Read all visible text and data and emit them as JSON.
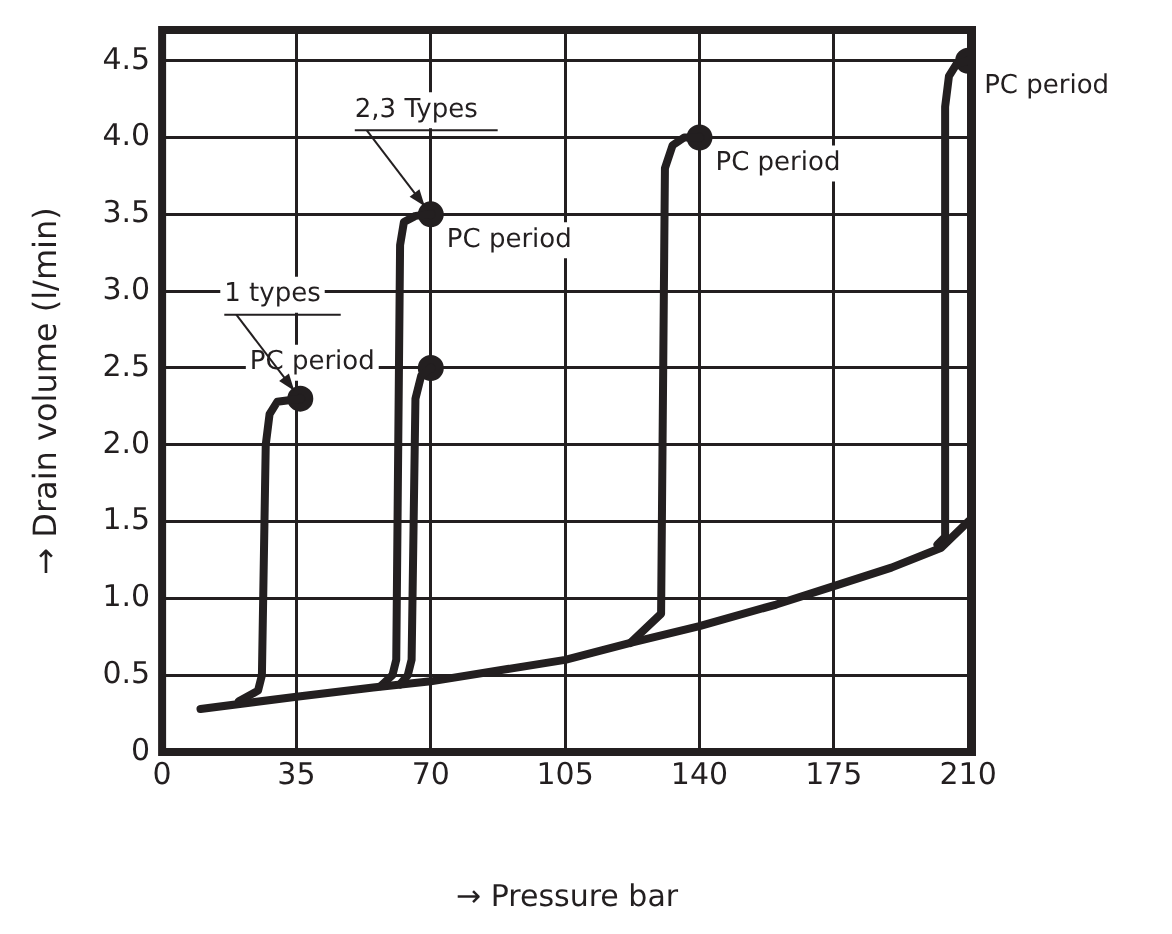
{
  "chart_data": {
    "type": "line",
    "xlabel": "→ Pressure bar",
    "ylabel": "→ Drain volume (l/min)",
    "xlim": [
      0,
      211
    ],
    "ylim": [
      0,
      4.7
    ],
    "xticks": [
      0,
      35,
      70,
      105,
      140,
      175,
      210
    ],
    "yticks": [
      0,
      {
        "value": 0.5,
        "label": "0.5"
      },
      {
        "value": 1,
        "label": "1.0"
      },
      {
        "value": 1.5,
        "label": "1.5"
      },
      {
        "value": 2,
        "label": "2.0"
      },
      {
        "value": 2.5,
        "label": "2.5"
      },
      {
        "value": 3,
        "label": "3.0"
      },
      {
        "value": 3.5,
        "label": "3.5"
      },
      {
        "value": 4,
        "label": "4.0"
      },
      {
        "value": 4.5,
        "label": "4.5"
      }
    ],
    "grid": true,
    "legend": false,
    "marker": "none",
    "line_style": "solid",
    "series": [
      {
        "color": "#231f20",
        "x": [
          10,
          35,
          55,
          70,
          90,
          105,
          122,
          140,
          160,
          175,
          190,
          203,
          210
        ],
        "values": [
          0.28,
          0.36,
          0.42,
          0.46,
          0.54,
          0.6,
          0.71,
          0.82,
          0.96,
          1.08,
          1.2,
          1.33,
          1.5
        ]
      },
      {
        "color": "#231f20",
        "x": [
          20,
          25,
          26,
          27,
          28,
          30,
          36
        ],
        "values": [
          0.33,
          0.4,
          0.5,
          2.0,
          2.2,
          2.28,
          2.3
        ]
      },
      {
        "color": "#231f20",
        "x": [
          57,
          60,
          61,
          62,
          63,
          66,
          70
        ],
        "values": [
          0.43,
          0.5,
          0.6,
          3.3,
          3.45,
          3.49,
          3.5
        ]
      },
      {
        "color": "#231f20",
        "x": [
          62,
          64,
          65,
          66,
          67.5,
          70
        ],
        "values": [
          0.44,
          0.5,
          0.6,
          2.3,
          2.45,
          2.5
        ]
      },
      {
        "color": "#231f20",
        "x": [
          122,
          130,
          131,
          133,
          136,
          140
        ],
        "values": [
          0.71,
          0.9,
          3.8,
          3.95,
          4.0,
          4.0
        ]
      },
      {
        "color": "#231f20",
        "x": [
          202,
          204,
          204,
          205,
          207,
          210
        ],
        "values": [
          1.35,
          1.4,
          4.2,
          4.4,
          4.48,
          4.5
        ]
      },
      {
        "type": "scatter",
        "color": "#231f20",
        "marker": "circle",
        "x": [
          36,
          70,
          70,
          140,
          210
        ],
        "values": [
          2.3,
          3.5,
          2.5,
          4.0,
          4.5
        ]
      }
    ],
    "annotations": [
      {
        "text": "1 types",
        "x": 36,
        "y": 2.3
      },
      {
        "text": "2,3 Types",
        "x": 70,
        "y": 3.5
      },
      {
        "text": "PC period",
        "x": 36,
        "y": 2.3
      },
      {
        "text": "PC period",
        "x": 70,
        "y": 3.5
      },
      {
        "text": "PC period",
        "x": 140,
        "y": 4.0
      },
      {
        "text": "PC period",
        "x": 210,
        "y": 4.5
      }
    ]
  }
}
